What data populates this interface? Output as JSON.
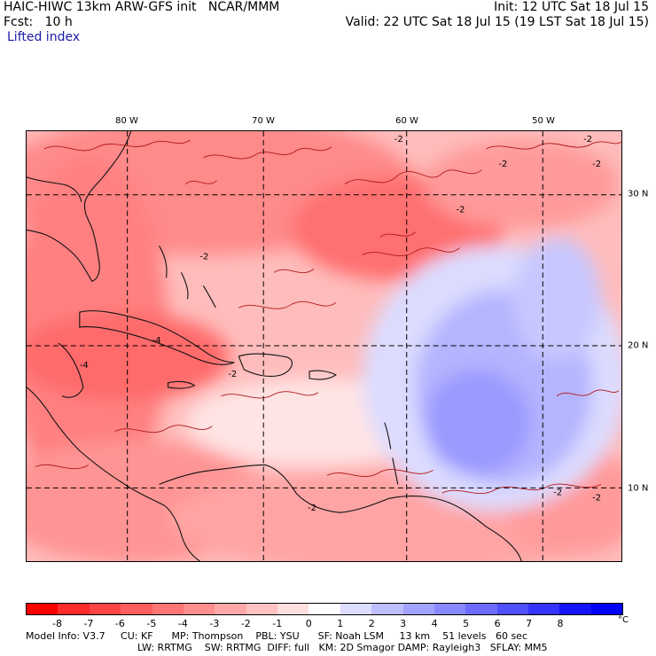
{
  "header": {
    "line1_left": "HAIC-HIWC 13km ARW-GFS init   NCAR/MMM",
    "line1_right": "Init: 12 UTC Sat 18 Jul 15",
    "line2_left": "Fcst:   10 h",
    "line2_right": "Valid: 22 UTC Sat 18 Jul 15 (19 LST Sat 18 Jul 15)",
    "field": "Lifted index"
  },
  "map": {
    "lon_labels": [
      "80 W",
      "70 W",
      "60 W",
      "50 W"
    ],
    "lat_labels": [
      "30 N",
      "20 N",
      "10 N"
    ],
    "contour_labels": [
      "-2",
      "-2",
      "-2",
      "-2",
      "-2",
      "-2",
      "-2",
      "-2",
      "-4",
      "-4",
      "-2",
      "-2"
    ]
  },
  "colorbar": {
    "ticks": [
      "-8",
      "-7",
      "-6",
      "-5",
      "-4",
      "-3",
      "-2",
      "-1",
      "0",
      "1",
      "2",
      "3",
      "4",
      "5",
      "6",
      "7",
      "8"
    ],
    "unit": "°C",
    "colors": [
      "#ff0000",
      "#ff2a2a",
      "#ff4444",
      "#ff5e5e",
      "#ff7676",
      "#ff8e8e",
      "#ffa8a8",
      "#ffc2c2",
      "#ffdede",
      "#ffffff",
      "#dcdcff",
      "#bebeff",
      "#a2a2ff",
      "#8888ff",
      "#6c6cff",
      "#5050ff",
      "#3434ff",
      "#1414ff",
      "#0000ff"
    ]
  },
  "model_info": {
    "line1": "Model Info: V3.7     CU: KF      MP: Thompson    PBL: YSU      SF: Noah LSM     13 km    51 levels   60 sec",
    "line2": "LW: RRTMG    SW: RRTMG  DIFF: full   KM: 2D Smagor DAMP: Rayleigh3   SFLAY: MM5"
  }
}
